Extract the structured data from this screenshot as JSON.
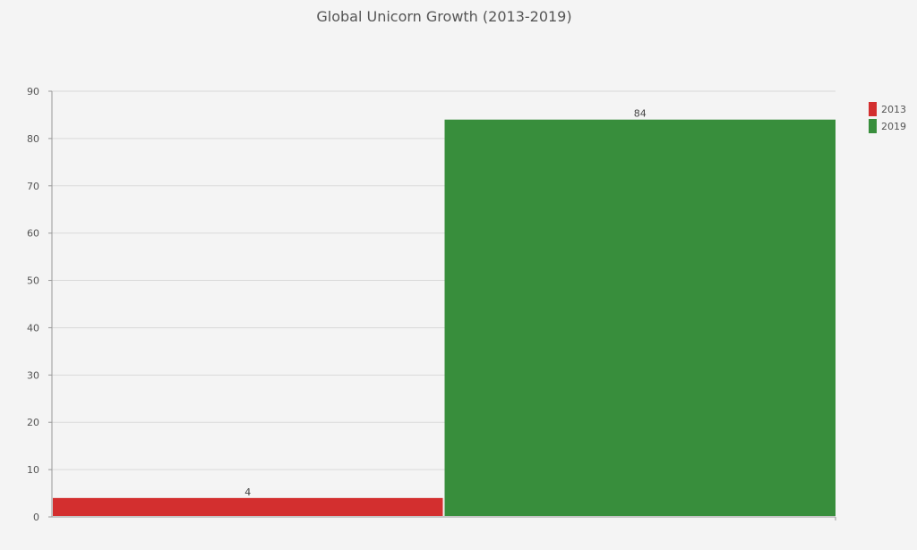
{
  "chart_data": {
    "type": "bar",
    "title": "Global Unicorn Growth (2013-2019)",
    "xlabel": "",
    "ylabel": "",
    "categories": [
      "2013",
      "2019"
    ],
    "values": [
      4,
      84
    ],
    "ylim": [
      0,
      90
    ],
    "yticks": [
      0,
      10,
      20,
      30,
      40,
      50,
      60,
      70,
      80,
      90
    ],
    "ytick_labels": [
      "0",
      "10",
      "20",
      "30",
      "40",
      "50",
      "60",
      "70",
      "80",
      "90"
    ],
    "data_labels": [
      "4",
      "84"
    ],
    "colors": [
      "#d32f2f",
      "#388e3c"
    ],
    "legend": {
      "position": "right",
      "entries": [
        "2013",
        "2019"
      ]
    },
    "grid": true
  }
}
